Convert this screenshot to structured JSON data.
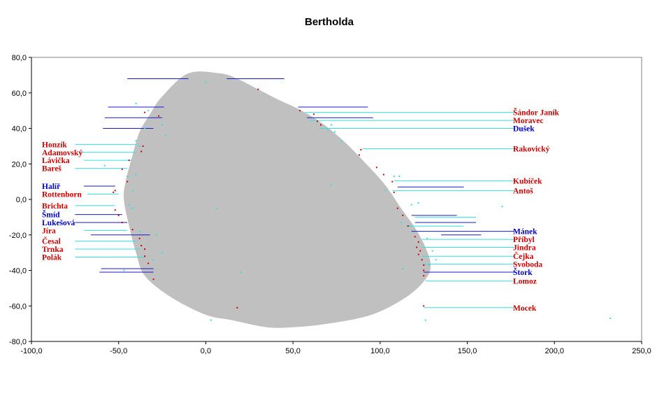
{
  "chart_data": {
    "type": "scatter",
    "title": "Bertholda",
    "xlabel": "",
    "ylabel": "",
    "xlim": [
      -100,
      250
    ],
    "ylim": [
      -80,
      80
    ],
    "x_ticks": [
      "-100,0",
      "-50,0",
      "0,0",
      "50,0",
      "100,0",
      "150,0",
      "200,0",
      "250,0"
    ],
    "y_ticks": [
      "80,0",
      "60,0",
      "40,0",
      "20,0",
      "0,0",
      "-20,0",
      "-40,0",
      "-60,0",
      "-80,0"
    ],
    "grid": false,
    "legend": "none",
    "colors": {
      "blob": "#c0c0c0",
      "red": "#cc0000",
      "blue": "#0000cc",
      "cyan": "#33e0e0",
      "line_blue": "#1a1acc",
      "label_red": "#cc0000",
      "label_blue": "#0000cc"
    },
    "region": [
      [
        -10,
        71
      ],
      [
        8,
        71
      ],
      [
        18,
        68
      ],
      [
        30,
        62
      ],
      [
        42,
        56
      ],
      [
        55,
        50
      ],
      [
        68,
        42
      ],
      [
        80,
        32
      ],
      [
        92,
        20
      ],
      [
        103,
        8
      ],
      [
        112,
        -5
      ],
      [
        120,
        -16
      ],
      [
        126,
        -27
      ],
      [
        129,
        -37
      ],
      [
        126,
        -45
      ],
      [
        115,
        -55
      ],
      [
        95,
        -65
      ],
      [
        70,
        -70
      ],
      [
        50,
        -72
      ],
      [
        35,
        -72
      ],
      [
        15,
        -68
      ],
      [
        0,
        -65
      ],
      [
        -20,
        -55
      ],
      [
        -35,
        -43
      ],
      [
        -40,
        -30
      ],
      [
        -44,
        -15
      ],
      [
        -47,
        0
      ],
      [
        -46,
        10
      ],
      [
        -42,
        25
      ],
      [
        -38,
        38
      ],
      [
        -32,
        48
      ],
      [
        -25,
        58
      ]
    ],
    "labels_left": [
      {
        "text": "Honzík",
        "y": 31,
        "color": "red"
      },
      {
        "text": "Adamovský",
        "y": 26.5,
        "color": "red"
      },
      {
        "text": "Lávička",
        "y": 22,
        "color": "red"
      },
      {
        "text": "Bareš",
        "y": 17.5,
        "color": "red"
      },
      {
        "text": "Halíř",
        "y": 7.5,
        "color": "blue"
      },
      {
        "text": "Rottenborn",
        "y": 3,
        "color": "red"
      },
      {
        "text": "Brichta",
        "y": -3.5,
        "color": "red"
      },
      {
        "text": "Šmíd",
        "y": -8.5,
        "color": "blue"
      },
      {
        "text": "Lukešová",
        "y": -13,
        "color": "blue"
      },
      {
        "text": "Jíra",
        "y": -17.5,
        "color": "red"
      },
      {
        "text": "Česal",
        "y": -23.5,
        "color": "red"
      },
      {
        "text": "Trnka",
        "y": -28,
        "color": "red"
      },
      {
        "text": "Polák",
        "y": -32.5,
        "color": "red"
      }
    ],
    "labels_right": [
      {
        "text": "Šándor  Janík",
        "y": 49,
        "color": "red"
      },
      {
        "text": "Moravec",
        "y": 44.5,
        "color": "red"
      },
      {
        "text": "Dušek",
        "y": 40,
        "color": "blue"
      },
      {
        "text": "Rakovický",
        "y": 28.5,
        "color": "red"
      },
      {
        "text": "Kubíček",
        "y": 10.5,
        "color": "red"
      },
      {
        "text": "Antoš",
        "y": 5,
        "color": "red"
      },
      {
        "text": "Mánek",
        "y": -18,
        "color": "blue"
      },
      {
        "text": "Příbyl",
        "y": -22.5,
        "color": "red"
      },
      {
        "text": "Jindra",
        "y": -27,
        "color": "red"
      },
      {
        "text": "Čejka",
        "y": -32,
        "color": "red"
      },
      {
        "text": "Svoboda",
        "y": -36.5,
        "color": "red"
      },
      {
        "text": "Štork",
        "y": -41,
        "color": "blue"
      },
      {
        "text": "Lomoz",
        "y": -46,
        "color": "red"
      },
      {
        "text": "Mocek",
        "y": -61,
        "color": "red"
      }
    ],
    "leaders_left": [
      {
        "x1": -75,
        "y1": 31,
        "x2": -40,
        "y2": 31,
        "color": "cyan"
      },
      {
        "x1": -72,
        "y1": 26.5,
        "x2": -40,
        "y2": 26.5,
        "color": "cyan"
      },
      {
        "x1": -70,
        "y1": 22,
        "x2": -42,
        "y2": 22,
        "color": "cyan"
      },
      {
        "x1": -75,
        "y1": 17.5,
        "x2": -45,
        "y2": 17.5,
        "color": "cyan"
      },
      {
        "x1": -70,
        "y1": 7.5,
        "x2": -52,
        "y2": 7.5,
        "color": "line_blue"
      },
      {
        "x1": -68,
        "y1": 3,
        "x2": -50,
        "y2": 3,
        "color": "cyan"
      },
      {
        "x1": -75,
        "y1": -3.5,
        "x2": -52,
        "y2": -3.5,
        "color": "cyan"
      },
      {
        "x1": -75,
        "y1": -8.5,
        "x2": -48,
        "y2": -8.5,
        "color": "line_blue"
      },
      {
        "x1": -75,
        "y1": -13,
        "x2": -45,
        "y2": -13,
        "color": "line_blue"
      },
      {
        "x1": -70,
        "y1": -17.5,
        "x2": -45,
        "y2": -17.5,
        "color": "cyan"
      },
      {
        "x1": -75,
        "y1": -23.5,
        "x2": -40,
        "y2": -23.5,
        "color": "cyan"
      },
      {
        "x1": -75,
        "y1": -28,
        "x2": -38,
        "y2": -28,
        "color": "cyan"
      },
      {
        "x1": -75,
        "y1": -32.5,
        "x2": -35,
        "y2": -32.5,
        "color": "cyan"
      }
    ],
    "leaders_right": [
      {
        "x1": 57,
        "y1": 49,
        "x2": 177,
        "y2": 49,
        "color": "cyan"
      },
      {
        "x1": 60,
        "y1": 44.5,
        "x2": 177,
        "y2": 44.5,
        "color": "cyan"
      },
      {
        "x1": 65,
        "y1": 40,
        "x2": 177,
        "y2": 40,
        "color": "cyan"
      },
      {
        "x1": 90,
        "y1": 28.5,
        "x2": 177,
        "y2": 28.5,
        "color": "cyan"
      },
      {
        "x1": 108,
        "y1": 10.5,
        "x2": 177,
        "y2": 10.5,
        "color": "cyan"
      },
      {
        "x1": 107,
        "y1": 5,
        "x2": 177,
        "y2": 5,
        "color": "cyan"
      },
      {
        "x1": 118,
        "y1": -18,
        "x2": 177,
        "y2": -18,
        "color": "line_blue"
      },
      {
        "x1": 124,
        "y1": -22.5,
        "x2": 177,
        "y2": -22.5,
        "color": "cyan"
      },
      {
        "x1": 124,
        "y1": -27,
        "x2": 177,
        "y2": -27,
        "color": "cyan"
      },
      {
        "x1": 124,
        "y1": -32,
        "x2": 177,
        "y2": -32,
        "color": "cyan"
      },
      {
        "x1": 125,
        "y1": -36.5,
        "x2": 177,
        "y2": -36.5,
        "color": "cyan"
      },
      {
        "x1": 125,
        "y1": -41,
        "x2": 177,
        "y2": -41,
        "color": "line_blue"
      },
      {
        "x1": 126,
        "y1": -46,
        "x2": 177,
        "y2": -46,
        "color": "cyan"
      },
      {
        "x1": 125,
        "y1": -61,
        "x2": 177,
        "y2": -61,
        "color": "cyan"
      }
    ],
    "extra_segments": [
      {
        "x1": -45,
        "y1": 68,
        "x2": -10,
        "y2": 68,
        "color": "line_blue"
      },
      {
        "x1": 12,
        "y1": 68,
        "x2": 45,
        "y2": 68,
        "color": "line_blue"
      },
      {
        "x1": -56,
        "y1": 52,
        "x2": -24,
        "y2": 52,
        "color": "line_blue"
      },
      {
        "x1": -58,
        "y1": 46,
        "x2": -25,
        "y2": 46,
        "color": "line_blue"
      },
      {
        "x1": -59,
        "y1": 40,
        "x2": -30,
        "y2": 40,
        "color": "line_blue"
      },
      {
        "x1": 53,
        "y1": 52,
        "x2": 93,
        "y2": 52,
        "color": "line_blue"
      },
      {
        "x1": 58,
        "y1": 46,
        "x2": 96,
        "y2": 46,
        "color": "line_blue"
      },
      {
        "x1": 110,
        "y1": 7,
        "x2": 148,
        "y2": 7,
        "color": "line_blue"
      },
      {
        "x1": 118,
        "y1": -9,
        "x2": 144,
        "y2": -9,
        "color": "line_blue"
      },
      {
        "x1": 120,
        "y1": -13,
        "x2": 155,
        "y2": -13,
        "color": "line_blue"
      },
      {
        "x1": 135,
        "y1": -20,
        "x2": 158,
        "y2": -20,
        "color": "line_blue"
      },
      {
        "x1": -66,
        "y1": -20,
        "x2": -32,
        "y2": -20,
        "color": "line_blue"
      },
      {
        "x1": -60,
        "y1": -39,
        "x2": -30,
        "y2": -39,
        "color": "line_blue"
      },
      {
        "x1": -61,
        "y1": -41,
        "x2": -30,
        "y2": -41,
        "color": "line_blue"
      },
      {
        "x1": 127,
        "y1": -41,
        "x2": 155,
        "y2": -41,
        "color": "line_blue"
      },
      {
        "x1": 120,
        "y1": -10,
        "x2": 155,
        "y2": -10,
        "color": "cyan"
      },
      {
        "x1": 115,
        "y1": -15,
        "x2": 148,
        "y2": -15,
        "color": "cyan"
      }
    ],
    "points_red": [
      [
        -35,
        49
      ],
      [
        -27,
        47
      ],
      [
        -36,
        30
      ],
      [
        -37,
        27
      ],
      [
        -44,
        22
      ],
      [
        -48,
        17
      ],
      [
        -45,
        10
      ],
      [
        -52,
        5
      ],
      [
        -53,
        4
      ],
      [
        -52,
        -6
      ],
      [
        -50,
        -9
      ],
      [
        -48,
        -13
      ],
      [
        -42,
        -17
      ],
      [
        -38,
        -22
      ],
      [
        -37,
        -26
      ],
      [
        -35,
        -28
      ],
      [
        -35,
        -32
      ],
      [
        -33,
        -36
      ],
      [
        -30,
        -45
      ],
      [
        54,
        50
      ],
      [
        62,
        48
      ],
      [
        64,
        44
      ],
      [
        66,
        42
      ],
      [
        89,
        28
      ],
      [
        88,
        25
      ],
      [
        98,
        18
      ],
      [
        102,
        14
      ],
      [
        107,
        10
      ],
      [
        108,
        4
      ],
      [
        110,
        -5
      ],
      [
        113,
        -9
      ],
      [
        116,
        -15
      ],
      [
        120,
        -21
      ],
      [
        122,
        -24
      ],
      [
        121,
        -27
      ],
      [
        123,
        -29
      ],
      [
        122,
        -31
      ],
      [
        124,
        -34
      ],
      [
        125,
        -37
      ],
      [
        125,
        -40
      ],
      [
        125,
        -43
      ],
      [
        125,
        -60
      ],
      [
        18,
        -61
      ],
      [
        30,
        62
      ]
    ],
    "points_cyan": [
      [
        -40,
        54
      ],
      [
        -33,
        50
      ],
      [
        -25,
        42
      ],
      [
        -35,
        40
      ],
      [
        -23,
        36
      ],
      [
        -40,
        33
      ],
      [
        -38,
        30
      ],
      [
        -58,
        19
      ],
      [
        -40,
        14
      ],
      [
        -45,
        13
      ],
      [
        -42,
        5
      ],
      [
        -44,
        -3
      ],
      [
        -42,
        -5
      ],
      [
        -38,
        -18
      ],
      [
        -28,
        -20
      ],
      [
        -30,
        -34
      ],
      [
        -25,
        -30
      ],
      [
        -47,
        -40
      ],
      [
        0,
        66
      ],
      [
        6,
        -5
      ],
      [
        20,
        -41
      ],
      [
        18,
        -61
      ],
      [
        3,
        -68
      ],
      [
        70,
        39
      ],
      [
        72,
        42
      ],
      [
        78,
        33
      ],
      [
        72,
        8
      ],
      [
        103,
        5
      ],
      [
        108,
        13
      ],
      [
        111,
        13
      ],
      [
        118,
        -3
      ],
      [
        122,
        -2
      ],
      [
        112,
        -13
      ],
      [
        117,
        -15
      ],
      [
        127,
        -22
      ],
      [
        130,
        -29
      ],
      [
        132,
        -34
      ],
      [
        128,
        -37
      ],
      [
        113,
        -39
      ],
      [
        126,
        -68
      ],
      [
        170,
        -4
      ],
      [
        232,
        -67
      ],
      [
        74,
        38
      ]
    ]
  }
}
